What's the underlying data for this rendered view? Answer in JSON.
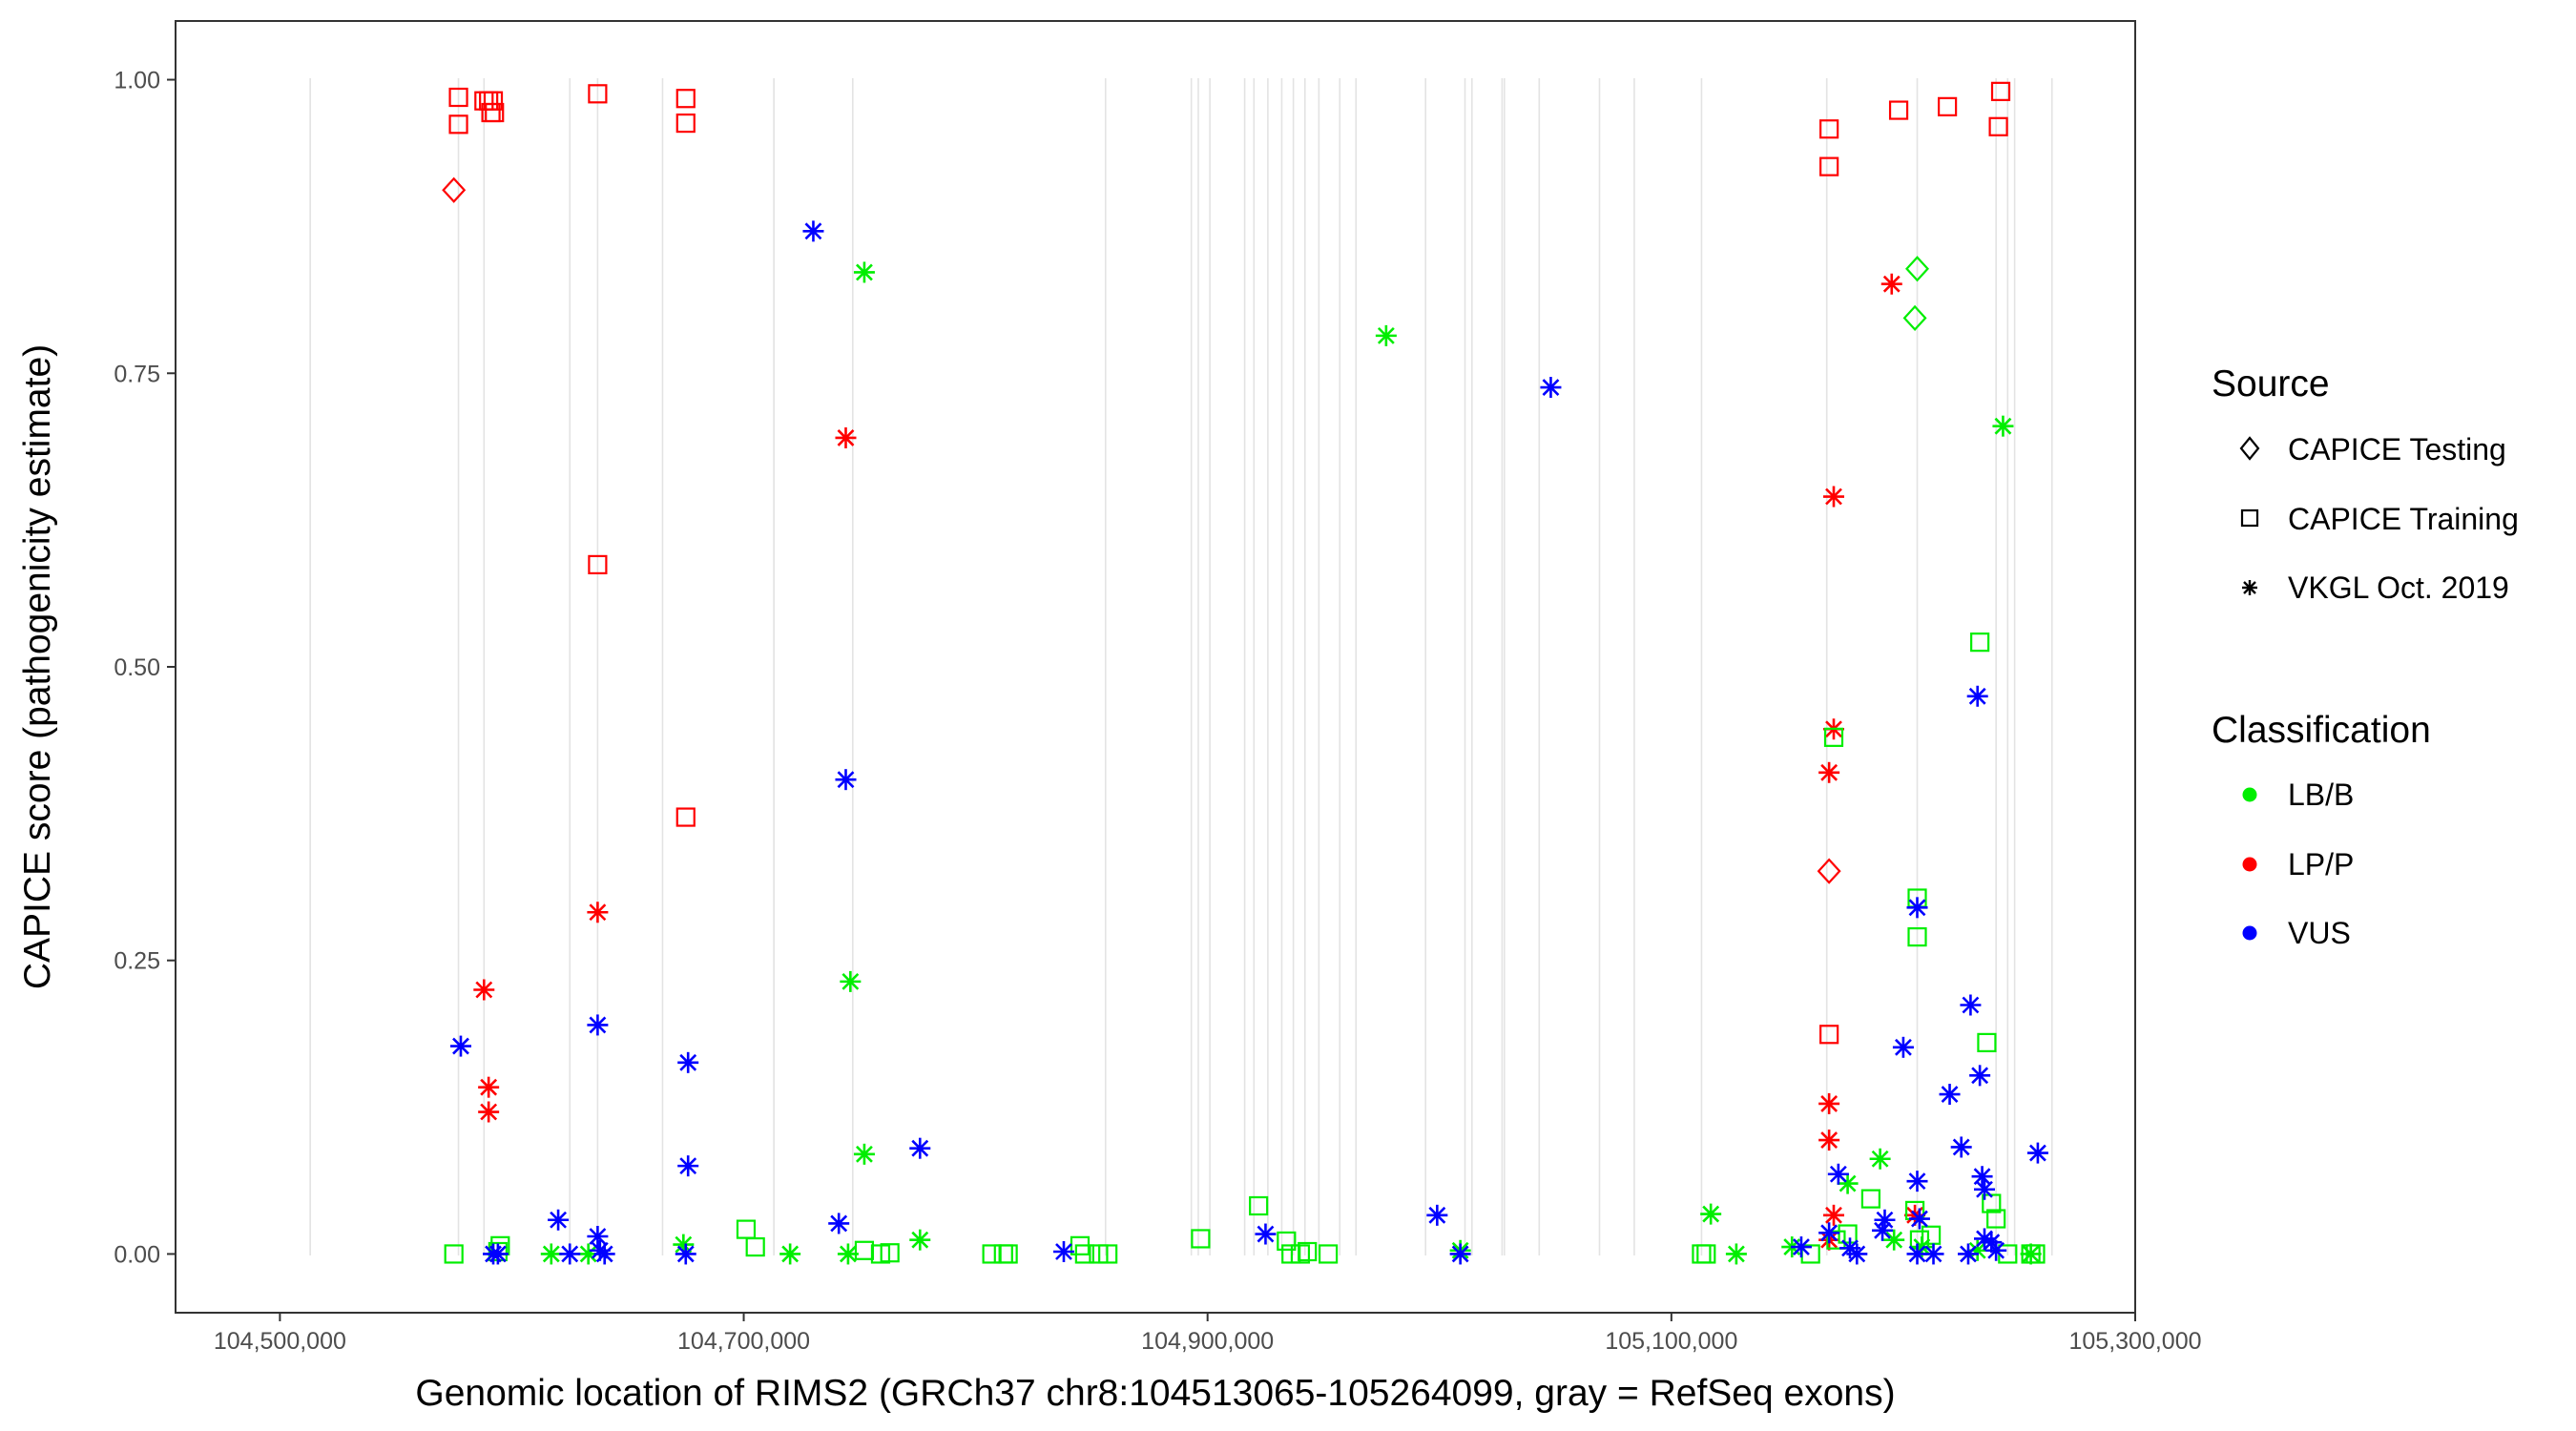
{
  "chart_data": {
    "type": "scatter",
    "xlabel": "Genomic location of RIMS2 (GRCh37 chr8:104513065-105264099, gray = RefSeq exons)",
    "ylabel": "CAPICE score (pathogenicity estimate)",
    "xlim": [
      104455000,
      105300000
    ],
    "ylim": [
      -0.05,
      1.05
    ],
    "x_ticks": [
      104500000,
      104700000,
      104900000,
      105100000,
      105300000
    ],
    "x_tick_labels": [
      "104,500,000",
      "104,700,000",
      "104,900,000",
      "105,100,000",
      "105,300,000"
    ],
    "y_ticks": [
      0,
      0.25,
      0.5,
      0.75,
      1
    ],
    "y_tick_labels": [
      "0.00",
      "0.25",
      "0.50",
      "0.75",
      "1.00"
    ],
    "grid": false,
    "exon_lines": [
      104513065,
      104577000,
      104588000,
      104625000,
      104637000,
      104665000,
      104713000,
      104747000,
      104856000,
      104893000,
      104896000,
      104901000,
      104916000,
      104920000,
      104926000,
      104932000,
      104937000,
      104942000,
      104948000,
      104957000,
      104964000,
      104994000,
      105011000,
      105014000,
      105027000,
      105028000,
      105043000,
      105069000,
      105084000,
      105113000,
      105167000,
      105206000,
      105240000,
      105245000,
      105248000,
      105264099
    ],
    "legend": {
      "placement": "right",
      "source": {
        "title": "Source",
        "entries": [
          {
            "label": "CAPICE Testing",
            "shape": "diamond"
          },
          {
            "label": "CAPICE Training",
            "shape": "square"
          },
          {
            "label": "VKGL Oct. 2019",
            "shape": "asterisk"
          }
        ]
      },
      "classification": {
        "title": "Classification",
        "entries": [
          {
            "label": "LB/B",
            "color": "#00ee00"
          },
          {
            "label": "LP/P",
            "color": "#ff0000"
          },
          {
            "label": "VUS",
            "color": "#0000ff"
          }
        ]
      }
    },
    "series": [
      {
        "name": "LP/P CAPICE Training",
        "class": "LP/P",
        "source": "CAPICE Training",
        "points": [
          [
            104577000,
            0.985
          ],
          [
            104577000,
            0.962
          ],
          [
            104588000,
            0.982
          ],
          [
            104590000,
            0.982
          ],
          [
            104591000,
            0.972
          ],
          [
            104592000,
            0.982
          ],
          [
            104592500,
            0.972
          ],
          [
            104637000,
            0.988
          ],
          [
            104637000,
            0.587
          ],
          [
            104675000,
            0.984
          ],
          [
            104675000,
            0.963
          ],
          [
            104675000,
            0.372
          ],
          [
            105168000,
            0.958
          ],
          [
            105168000,
            0.926
          ],
          [
            105168000,
            0.187
          ],
          [
            105198000,
            0.974
          ],
          [
            105219000,
            0.977
          ],
          [
            105242000,
            0.99
          ],
          [
            105241000,
            0.96
          ]
        ]
      },
      {
        "name": "LP/P CAPICE Testing",
        "class": "LP/P",
        "source": "CAPICE Testing",
        "points": [
          [
            104575000,
            0.906
          ],
          [
            105168000,
            0.326
          ]
        ]
      },
      {
        "name": "LP/P VKGL Oct. 2019",
        "class": "LP/P",
        "source": "VKGL Oct. 2019",
        "points": [
          [
            104588000,
            0.225
          ],
          [
            104590000,
            0.142
          ],
          [
            104590000,
            0.121
          ],
          [
            104637000,
            0.291
          ],
          [
            104744000,
            0.695
          ],
          [
            105170000,
            0.645
          ],
          [
            105170000,
            0.447
          ],
          [
            105168000,
            0.41
          ],
          [
            105168000,
            0.128
          ],
          [
            105168000,
            0.097
          ],
          [
            105170000,
            0.033
          ],
          [
            105168000,
            0.012
          ],
          [
            105195000,
            0.826
          ],
          [
            105205000,
            0.033
          ]
        ]
      },
      {
        "name": "LB/B CAPICE Training",
        "class": "LB/B",
        "source": "CAPICE Training",
        "points": [
          [
            104575000,
            0.0
          ],
          [
            104594000,
            0.002
          ],
          [
            104595000,
            0.007
          ],
          [
            104701000,
            0.021
          ],
          [
            104705000,
            0.006
          ],
          [
            104752000,
            0.003
          ],
          [
            104759000,
            0.0
          ],
          [
            104763000,
            0.001
          ],
          [
            104807000,
            0.0
          ],
          [
            104812000,
            0.0
          ],
          [
            104814000,
            0.0
          ],
          [
            104845000,
            0.007
          ],
          [
            104847000,
            0.0
          ],
          [
            104853000,
            0.0
          ],
          [
            104857000,
            0.0
          ],
          [
            104897000,
            0.013
          ],
          [
            104922000,
            0.041
          ],
          [
            104934000,
            0.011
          ],
          [
            104936000,
            0.0
          ],
          [
            104940000,
            0.0
          ],
          [
            104943000,
            0.002
          ],
          [
            104952000,
            0.0
          ],
          [
            105113000,
            0.0
          ],
          [
            105115000,
            0.0
          ],
          [
            105160000,
            0.0
          ],
          [
            105170000,
            0.44
          ],
          [
            105171000,
            0.012
          ],
          [
            105176000,
            0.017
          ],
          [
            105186000,
            0.047
          ],
          [
            105206000,
            0.303
          ],
          [
            105206000,
            0.27
          ],
          [
            105205000,
            0.037
          ],
          [
            105207000,
            0.012
          ],
          [
            105212000,
            0.016
          ],
          [
            105233000,
            0.521
          ],
          [
            105236000,
            0.18
          ],
          [
            105238000,
            0.043
          ],
          [
            105240000,
            0.03
          ],
          [
            105245000,
            0.0
          ],
          [
            105255000,
            0.0
          ],
          [
            105257000,
            0.0
          ]
        ]
      },
      {
        "name": "LB/B CAPICE Testing",
        "class": "LB/B",
        "source": "CAPICE Testing",
        "points": [
          [
            105206000,
            0.839
          ],
          [
            105205000,
            0.797
          ]
        ]
      },
      {
        "name": "LB/B VKGL Oct. 2019",
        "class": "LB/B",
        "source": "VKGL Oct. 2019",
        "points": [
          [
            104752000,
            0.836
          ],
          [
            104746000,
            0.232
          ],
          [
            104752000,
            0.085
          ],
          [
            104745000,
            0.0
          ],
          [
            104776000,
            0.012
          ],
          [
            104617000,
            0.0
          ],
          [
            104633000,
            0.0
          ],
          [
            104674000,
            0.008
          ],
          [
            104720000,
            0.0
          ],
          [
            104977000,
            0.782
          ],
          [
            105009000,
            0.003
          ],
          [
            105117000,
            0.034
          ],
          [
            105128000,
            0.0
          ],
          [
            105152000,
            0.006
          ],
          [
            105176000,
            0.06
          ],
          [
            105190000,
            0.081
          ],
          [
            105196000,
            0.012
          ],
          [
            105208000,
            0.006
          ],
          [
            105232000,
            0.003
          ],
          [
            105243000,
            0.705
          ],
          [
            105255000,
            0.0
          ]
        ]
      },
      {
        "name": "VUS VKGL Oct. 2019",
        "class": "VUS",
        "source": "VKGL Oct. 2019",
        "points": [
          [
            104578000,
            0.177
          ],
          [
            104592000,
            0.0
          ],
          [
            104594000,
            0.0
          ],
          [
            104620000,
            0.029
          ],
          [
            104625000,
            0.0
          ],
          [
            104637000,
            0.195
          ],
          [
            104637000,
            0.015
          ],
          [
            104638000,
            0.003
          ],
          [
            104640000,
            0.0
          ],
          [
            104676000,
            0.163
          ],
          [
            104676000,
            0.075
          ],
          [
            104675000,
            0.0
          ],
          [
            104730000,
            0.871
          ],
          [
            104744000,
            0.404
          ],
          [
            104741000,
            0.026
          ],
          [
            104776000,
            0.09
          ],
          [
            104838000,
            0.002
          ],
          [
            104925000,
            0.017
          ],
          [
            104999000,
            0.033
          ],
          [
            105009000,
            0.0
          ],
          [
            105048000,
            0.738
          ],
          [
            105156000,
            0.006
          ],
          [
            105168000,
            0.018
          ],
          [
            105172000,
            0.068
          ],
          [
            105177000,
            0.005
          ],
          [
            105180000,
            0.0
          ],
          [
            105191000,
            0.02
          ],
          [
            105192000,
            0.029
          ],
          [
            105200000,
            0.176
          ],
          [
            105206000,
            0.295
          ],
          [
            105206000,
            0.062
          ],
          [
            105207000,
            0.03
          ],
          [
            105206000,
            0.0
          ],
          [
            105213000,
            0.0
          ],
          [
            105220000,
            0.136
          ],
          [
            105225000,
            0.091
          ],
          [
            105228000,
            0.0
          ],
          [
            105229000,
            0.212
          ],
          [
            105232000,
            0.475
          ],
          [
            105233000,
            0.152
          ],
          [
            105234000,
            0.066
          ],
          [
            105235000,
            0.055
          ],
          [
            105235000,
            0.013
          ],
          [
            105238000,
            0.01
          ],
          [
            105240000,
            0.003
          ],
          [
            105258000,
            0.086
          ]
        ]
      }
    ]
  }
}
